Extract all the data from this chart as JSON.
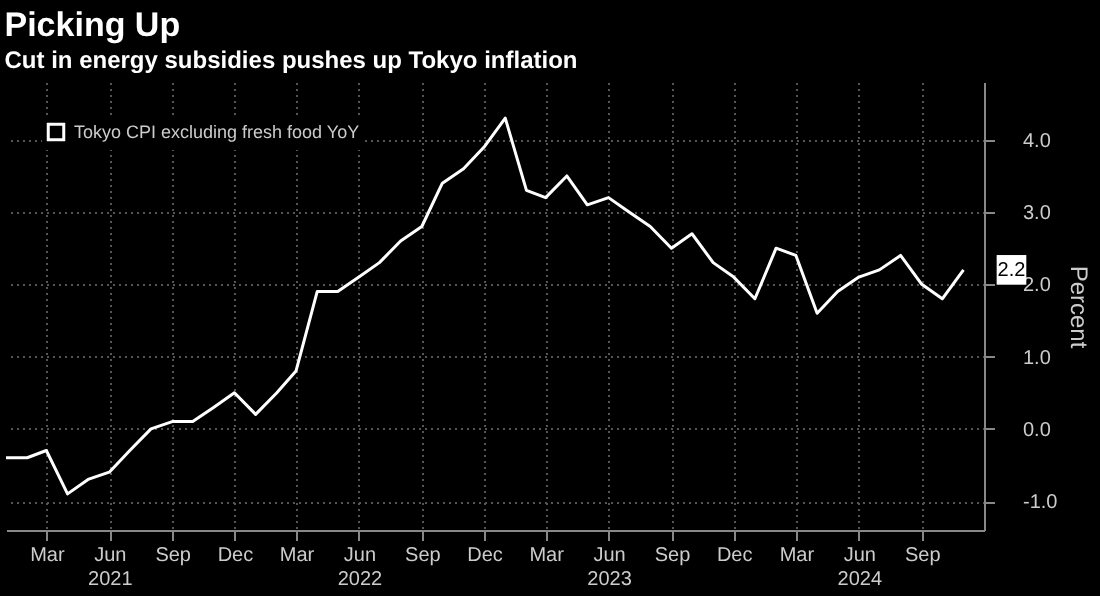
{
  "chart_data": {
    "type": "line",
    "title": "Picking Up",
    "subtitle": "Cut in energy subsidies pushes up Tokyo inflation",
    "ylabel": "Percent",
    "x": [
      "2021-01",
      "2021-02",
      "2021-03",
      "2021-04",
      "2021-05",
      "2021-06",
      "2021-07",
      "2021-08",
      "2021-09",
      "2021-10",
      "2021-11",
      "2021-12",
      "2022-01",
      "2022-02",
      "2022-03",
      "2022-04",
      "2022-05",
      "2022-06",
      "2022-07",
      "2022-08",
      "2022-09",
      "2022-10",
      "2022-11",
      "2022-12",
      "2023-01",
      "2023-02",
      "2023-03",
      "2023-04",
      "2023-05",
      "2023-06",
      "2023-07",
      "2023-08",
      "2023-09",
      "2023-10",
      "2023-11",
      "2023-12",
      "2024-01",
      "2024-02",
      "2024-03",
      "2024-04",
      "2024-05",
      "2024-06",
      "2024-07",
      "2024-08",
      "2024-09",
      "2024-10",
      "2024-11"
    ],
    "series": [
      {
        "name": "Tokyo CPI excluding fresh food YoY",
        "color": "#ffffff",
        "values": [
          -0.4,
          -0.4,
          -0.3,
          -0.9,
          -0.7,
          -0.6,
          -0.3,
          0.0,
          0.1,
          0.1,
          0.3,
          0.5,
          0.2,
          0.5,
          0.8,
          1.9,
          1.9,
          2.1,
          2.3,
          2.6,
          2.8,
          3.4,
          3.6,
          3.9,
          4.3,
          3.3,
          3.2,
          3.5,
          3.1,
          3.2,
          3.0,
          2.8,
          2.5,
          2.7,
          2.3,
          2.1,
          1.8,
          2.5,
          2.4,
          1.6,
          1.9,
          2.1,
          2.2,
          2.4,
          2.0,
          1.8,
          2.2
        ],
        "value_labels": [
          null,
          null,
          null,
          null,
          null,
          null,
          null,
          null,
          null,
          null,
          null,
          null,
          null,
          null,
          null,
          null,
          null,
          null,
          null,
          null,
          null,
          null,
          null,
          null,
          null,
          null,
          null,
          null,
          null,
          null,
          null,
          null,
          null,
          null,
          null,
          null,
          null,
          null,
          null,
          null,
          null,
          null,
          null,
          null,
          null,
          null,
          "2.2"
        ]
      }
    ],
    "xlim": [
      "2021-01",
      "2024-12"
    ],
    "xticks": [
      {
        "value": "2021-03",
        "label": "Mar"
      },
      {
        "value": "2021-06",
        "label": "Jun\n2021"
      },
      {
        "value": "2021-09",
        "label": "Sep"
      },
      {
        "value": "2021-12",
        "label": "Dec"
      },
      {
        "value": "2022-03",
        "label": "Mar"
      },
      {
        "value": "2022-06",
        "label": "Jun\n2022"
      },
      {
        "value": "2022-09",
        "label": "Sep"
      },
      {
        "value": "2022-12",
        "label": "Dec"
      },
      {
        "value": "2023-03",
        "label": "Mar"
      },
      {
        "value": "2023-06",
        "label": "Jun\n2023"
      },
      {
        "value": "2023-09",
        "label": "Sep"
      },
      {
        "value": "2023-12",
        "label": "Dec"
      },
      {
        "value": "2024-03",
        "label": "Mar"
      },
      {
        "value": "2024-06",
        "label": "Jun\n2024"
      },
      {
        "value": "2024-09",
        "label": "Sep"
      }
    ],
    "ylim": [
      -1.4,
      4.8
    ],
    "yticks": [
      {
        "value": -1,
        "label": "-1.0"
      },
      {
        "value": 0,
        "label": "0.0"
      },
      {
        "value": 1,
        "label": "1.0"
      },
      {
        "value": 2,
        "label": "2.0"
      },
      {
        "value": 3,
        "label": "3.0"
      },
      {
        "value": 4,
        "label": "4.0"
      }
    ],
    "grid": true,
    "legend": "top left"
  }
}
